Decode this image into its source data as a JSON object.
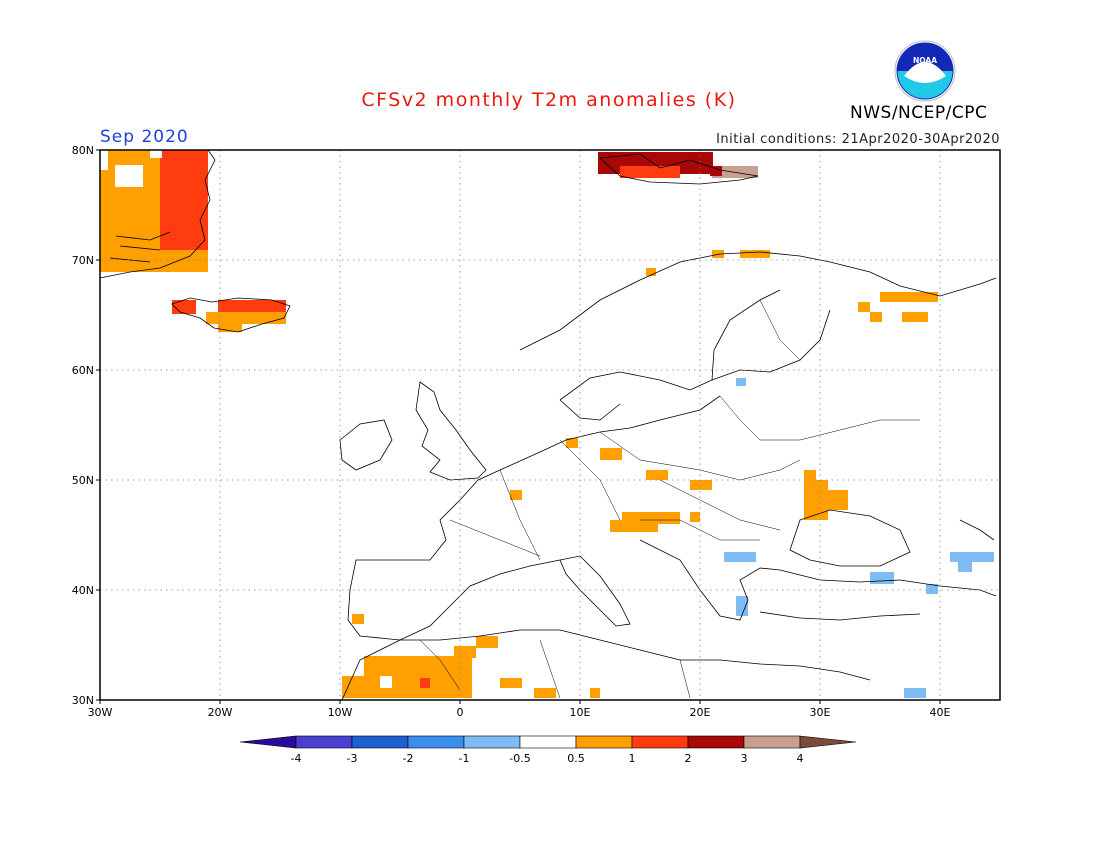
{
  "header": {
    "title": "CFSv2 monthly T2m anomalies (K)",
    "month": "Sep 2020",
    "initial_conditions": "Initial conditions: 21Apr2020-30Apr2020",
    "agency": "NWS/NCEP/CPC",
    "logo_text": "NOAA"
  },
  "map": {
    "lat_labels": [
      "80N",
      "70N",
      "60N",
      "50N",
      "40N",
      "30N"
    ],
    "lon_labels": [
      "30W",
      "20W",
      "10W",
      "0",
      "10E",
      "20E",
      "30E",
      "40E"
    ],
    "extent": {
      "lon_min": -30,
      "lon_max": 45,
      "lat_min": 30,
      "lat_max": 80
    },
    "anomaly_regions": [
      {
        "region": "Greenland east coast",
        "level": "0.5 to 2"
      },
      {
        "region": "Iceland",
        "level": "0.5 to 2"
      },
      {
        "region": "Svalbard",
        "level": "1 to 4"
      },
      {
        "region": "Northern Norway / Kola",
        "level": "0.5 to 1"
      },
      {
        "region": "Central Europe",
        "level": "0.5 to 1"
      },
      {
        "region": "Ukraine",
        "level": "0.5 to 1"
      },
      {
        "region": "Morocco / Algeria",
        "level": "0.5 to 2"
      },
      {
        "region": "Balkans / Greece",
        "level": "-1 to -0.5"
      },
      {
        "region": "Turkey / Caucasus",
        "level": "-1 to -0.5"
      }
    ]
  },
  "colorbar": {
    "labels": [
      "-4",
      "-3",
      "-2",
      "-1",
      "-0.5",
      "0.5",
      "1",
      "2",
      "3",
      "4"
    ],
    "colors": [
      "#2a0a9a",
      "#4a3fd0",
      "#1f5fd0",
      "#3b8ef0",
      "#80bcf4",
      "#ffffff",
      "#ff9f00",
      "#ff3c10",
      "#a80808",
      "#c9a090",
      "#7a4a3a"
    ]
  }
}
